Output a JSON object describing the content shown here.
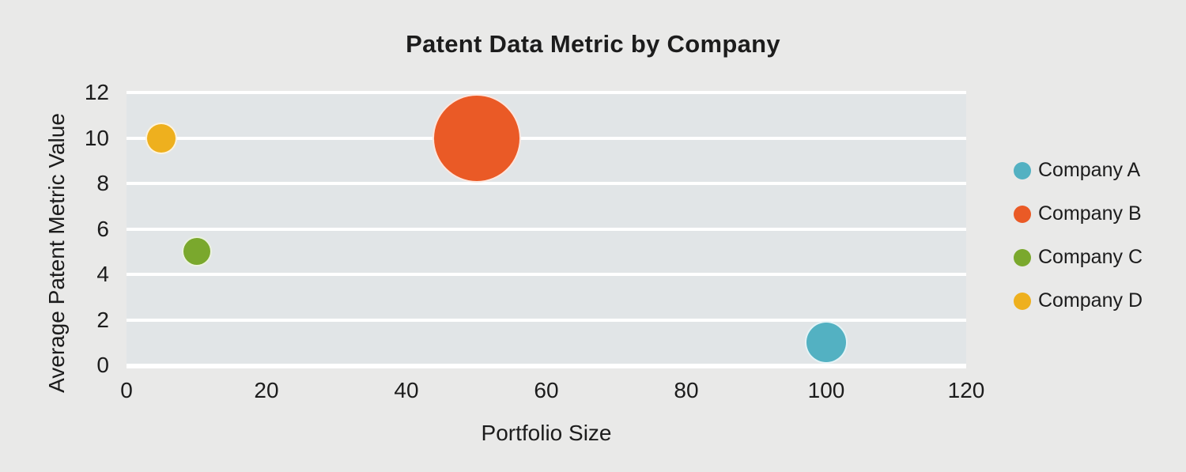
{
  "title": "Patent Data Metric by Company",
  "colors": {
    "background": "#e9e9e8",
    "plot_band": "#e1e5e7",
    "gridline": "#ffffff",
    "text": "#1c1c1c",
    "company_a": "#53b1c2",
    "company_b": "#ea5a26",
    "company_c": "#7aa82d",
    "company_d": "#eeb01e"
  },
  "chart_data": {
    "type": "scatter",
    "subtype": "bubble",
    "title": "Patent Data Metric by Company",
    "xlabel": "Portfolio Size",
    "ylabel": "Average Patent Metric Value",
    "xlim": [
      0,
      120
    ],
    "ylim": [
      0,
      12
    ],
    "x_ticks": [
      0,
      20,
      40,
      60,
      80,
      100,
      120
    ],
    "y_ticks": [
      0,
      2,
      4,
      6,
      8,
      10,
      12
    ],
    "grid": "horizontal white gridlines over shaded plot band",
    "legend_position": "right",
    "series": [
      {
        "name": "Company A",
        "color": "#53b1c2",
        "points": [
          {
            "x": 100,
            "y": 1,
            "radius_px": 27
          }
        ]
      },
      {
        "name": "Company B",
        "color": "#ea5a26",
        "points": [
          {
            "x": 50,
            "y": 10,
            "radius_px": 56
          }
        ]
      },
      {
        "name": "Company C",
        "color": "#7aa82d",
        "points": [
          {
            "x": 10,
            "y": 5,
            "radius_px": 19
          }
        ]
      },
      {
        "name": "Company D",
        "color": "#eeb01e",
        "points": [
          {
            "x": 5,
            "y": 10,
            "radius_px": 20
          }
        ]
      }
    ]
  }
}
